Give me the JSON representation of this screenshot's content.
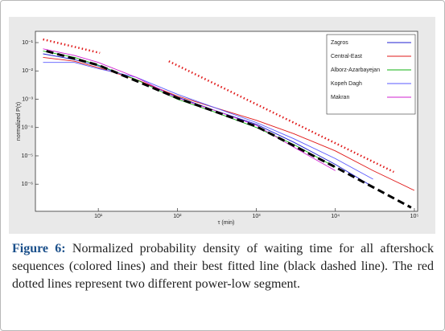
{
  "chart_data": {
    "type": "line",
    "xlabel": "τ (min)",
    "ylabel": "normalized P(τ)",
    "xlog": true,
    "ylog": true,
    "grid": false,
    "legend": "upper right",
    "xlim": [
      1.6,
      110000
    ],
    "ylim": [
      1.1e-07,
      0.25
    ],
    "xticks": [
      {
        "value": 10,
        "label": "10¹"
      },
      {
        "value": 100,
        "label": "10²"
      },
      {
        "value": 1000,
        "label": "10³"
      },
      {
        "value": 10000,
        "label": "10⁴"
      },
      {
        "value": 100000,
        "label": "10⁵"
      }
    ],
    "yticks": [
      {
        "value": 0.1,
        "label": "10⁻¹"
      },
      {
        "value": 0.01,
        "label": "10⁻²"
      },
      {
        "value": 0.001,
        "label": "10⁻³"
      },
      {
        "value": 0.0001,
        "label": "10⁻⁴"
      },
      {
        "value": 1e-05,
        "label": "10⁻⁵"
      },
      {
        "value": 1e-06,
        "label": "10⁻⁶"
      }
    ],
    "x": [
      2,
      5,
      10,
      30,
      100,
      300,
      1000,
      3000,
      10000,
      30000,
      100000
    ],
    "series": [
      {
        "name": "Zagros",
        "color": "#1f1fd0",
        "values": [
          0.04,
          0.025,
          0.015,
          0.005,
          0.0012,
          0.0004,
          0.00013,
          3e-05,
          5e-06,
          8e-07,
          null
        ]
      },
      {
        "name": "Central-East",
        "color": "#e01818",
        "values": [
          0.03,
          0.022,
          0.013,
          0.005,
          0.0013,
          0.0005,
          0.00018,
          6e-05,
          1.5e-05,
          3e-06,
          6e-07
        ]
      },
      {
        "name": "Alborz-Azarbayejan",
        "color": "#10b010",
        "values": [
          0.05,
          0.03,
          0.016,
          0.005,
          0.001,
          0.00035,
          0.0001,
          2.5e-05,
          4e-06,
          null,
          null
        ]
      },
      {
        "name": "Kopeh Dagh",
        "color": "#5a5aff",
        "values": [
          0.02,
          0.02,
          0.012,
          0.006,
          0.0015,
          0.0005,
          0.00015,
          4e-05,
          8e-06,
          1.5e-06,
          null
        ]
      },
      {
        "name": "Makran",
        "color": "#d020d0",
        "values": [
          0.06,
          0.035,
          0.02,
          0.006,
          0.0011,
          0.0004,
          0.00012,
          2e-05,
          3e-06,
          null,
          null
        ]
      }
    ],
    "fit_lines": [
      {
        "color": "#000000",
        "style": "dashed",
        "x": [
          2.2,
          10,
          100,
          1000,
          10000,
          91000
        ],
        "values": [
          0.05,
          0.016,
          0.0011,
          0.00011,
          4e-06,
          1.5e-07
        ]
      },
      {
        "color": "#e01818",
        "style": "dotted",
        "x": [
          2,
          10.5
        ],
        "values": [
          0.13,
          0.043
        ]
      },
      {
        "color": "#e01818",
        "style": "dotted",
        "x": [
          78,
          55000
        ],
        "values": [
          0.022,
          2.7e-06
        ]
      }
    ]
  },
  "caption": {
    "label": "Figure 6:",
    "text": "Normalized probability density of waiting time for all aftershock sequences (colored lines) and their best fitted line (black dashed line). The red dotted lines represent two different power-low segment."
  }
}
